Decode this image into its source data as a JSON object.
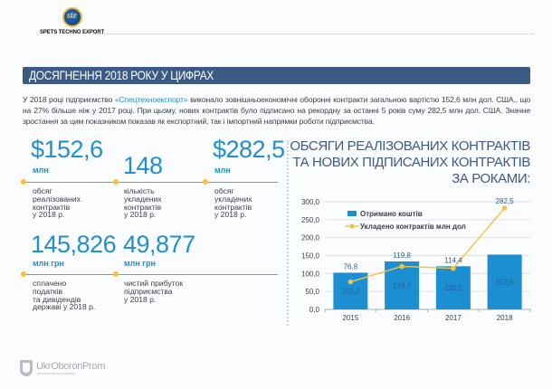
{
  "header": {
    "logo_mark": "ste",
    "logo_text": "SPETS TECHNO EXPORT"
  },
  "section_title": "ДОСЯГНЕННЯ 2018 РОКУ У ЦИФРАХ",
  "intro": {
    "before": "У 2018 році підприємство ",
    "brand": "«Спецтехноекспорт»",
    "after": " виконало зовнішньоекономічні оборонні контракти загальною вартістю 152,6 млн дол. США., що на 27% більше ніж у 2017 році. При цьому, нових контрактів було підписано на рекордну за останні 5 років суму 282,5 млн дол. США. Значне зростання за цим показником показав як експортний, так і імпортний напрямки роботи підприємства."
  },
  "stats": [
    {
      "value": "$152,6",
      "unit": "млн",
      "desc": "обсяг\nреалізованих\nконтрактів\nу 2018 р."
    },
    {
      "value": "148",
      "unit": "",
      "desc": "кількість\nукладених\nконтрактів\nу 2018 р."
    },
    {
      "value": "$282,5",
      "unit": "млн",
      "desc": "обсяг\nукладених\nконтрактів\nу 2018 р."
    },
    {
      "value": "145,826",
      "unit": "млн грн",
      "desc": "сплачено\nподатків\nта дивідендів\nдержаві у 2018 р."
    },
    {
      "value": "49,877",
      "unit": "млн грн",
      "desc": "чистий прибуток\nпідприємства\nу 2018 р."
    }
  ],
  "chart_title": "ОБСЯГИ РЕАЛІЗОВАНИХ КОНТРАКТІВ ТА НОВИХ ПІДПИСАНИХ КОНТРАКТІВ ЗА РОКАМИ:",
  "chart_data": {
    "type": "bar",
    "title": "ОБСЯГИ РЕАЛІЗОВАНИХ КОНТРАКТІВ ТА НОВИХ ПІДПИСАНИХ КОНТРАКТІВ ЗА РОКАМИ:",
    "categories": [
      "2015",
      "2016",
      "2017",
      "2018"
    ],
    "series": [
      {
        "name": "Отримано коштів",
        "type": "bar",
        "color": "#1b8fd2",
        "values": [
          102.2,
          133.7,
          120.2,
          152.6
        ],
        "labels": [
          "102,2",
          "133,7",
          "120,2",
          "152,6"
        ]
      },
      {
        "name": "Укладено контрактів млн дол",
        "type": "line",
        "color": "#f4c23d",
        "values": [
          76.8,
          119.8,
          114.4,
          282.5
        ],
        "labels": [
          "76,8",
          "119,8",
          "114,4",
          "282,5"
        ]
      }
    ],
    "ylim": [
      0,
      300
    ],
    "yticks": [
      "0,0",
      "50,0",
      "100,0",
      "150,0",
      "200,0",
      "250,0",
      "300,0"
    ],
    "ytick_values": [
      0,
      50,
      100,
      150,
      200,
      250,
      300
    ],
    "grid": true,
    "legend_position": "top-left",
    "xlabel": "",
    "ylabel": ""
  },
  "footer": {
    "name": "UkrOboronProm",
    "subtitle": "Ukrainian Defence Industry"
  }
}
